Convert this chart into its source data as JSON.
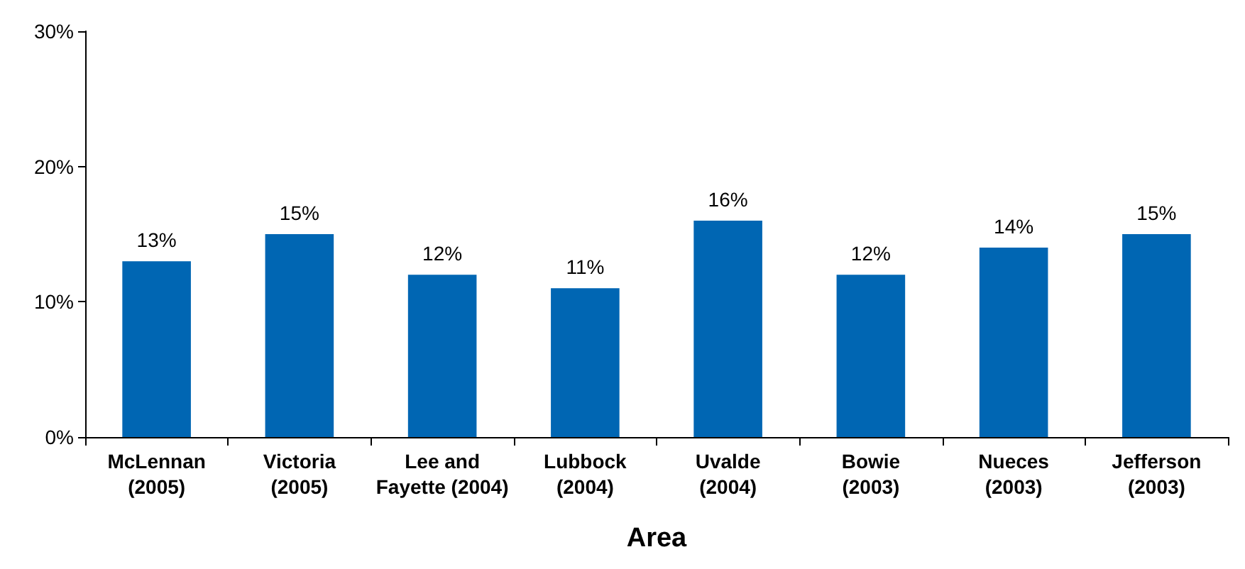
{
  "chart_data": {
    "type": "bar",
    "xlabel": "Area",
    "categories": [
      "McLennan\n(2005)",
      "Victoria\n(2005)",
      "Lee and\nFayette (2004)",
      "Lubbock\n(2004)",
      "Uvalde\n(2004)",
      "Bowie\n(2003)",
      "Nueces\n(2003)",
      "Jefferson\n(2003)"
    ],
    "values": [
      13,
      15,
      12,
      11,
      16,
      12,
      14,
      15
    ],
    "value_labels": [
      "13%",
      "15%",
      "12%",
      "11%",
      "16%",
      "12%",
      "14%",
      "15%"
    ],
    "color": "#0066b3",
    "ylim": [
      0,
      30
    ],
    "yticks": [
      {
        "value": 0,
        "label": "0%"
      },
      {
        "value": 10,
        "label": "10%"
      },
      {
        "value": 20,
        "label": "20%"
      },
      {
        "value": 30,
        "label": "30%"
      }
    ],
    "grid": false
  }
}
